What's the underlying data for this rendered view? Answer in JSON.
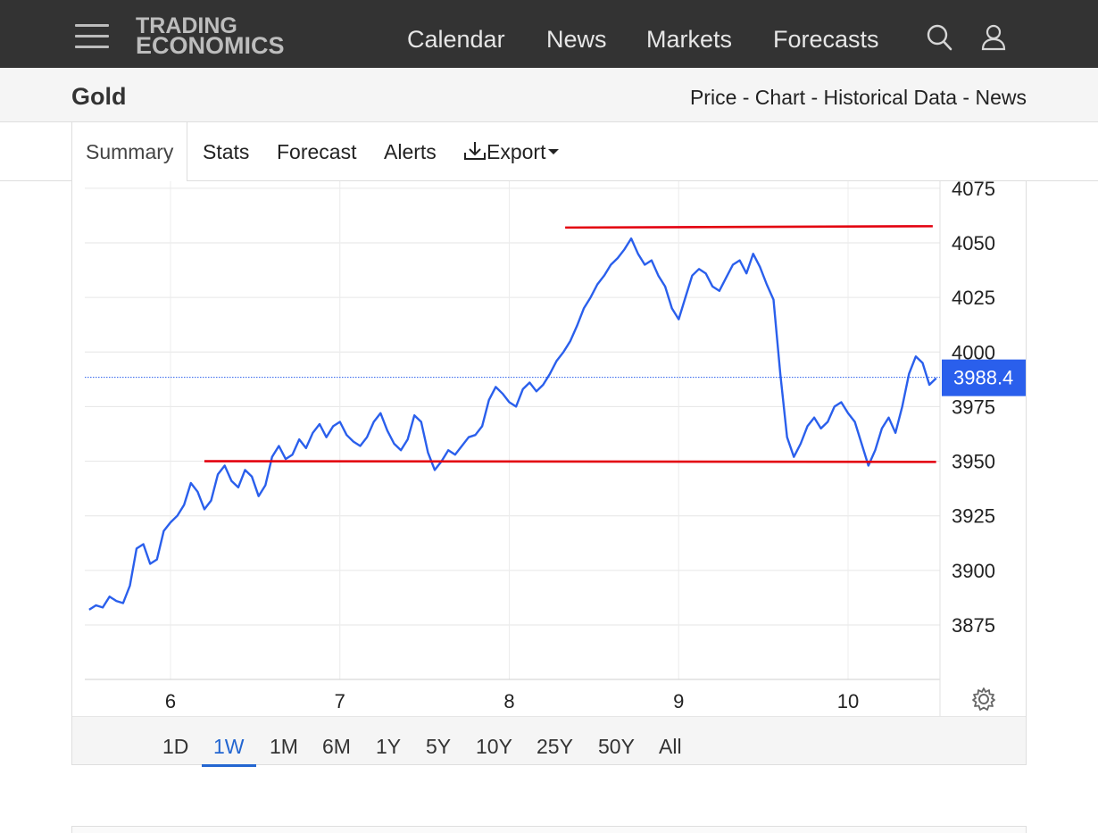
{
  "header": {
    "logo_line1": "TRADING",
    "logo_line2": "ECONOMICS",
    "nav": [
      "Calendar",
      "News",
      "Markets",
      "Forecasts"
    ]
  },
  "page": {
    "title": "Gold",
    "links": "Price - Chart - Historical Data - News"
  },
  "tabs": {
    "summary": "Summary",
    "stats": "Stats",
    "forecast": "Forecast",
    "alerts": "Alerts",
    "export": "Export"
  },
  "colors": {
    "line": "#2a5fec",
    "support": "#e3000f",
    "badge": "#2a5fec"
  },
  "chart_data": {
    "type": "line",
    "series_color": "#2a5fec",
    "current_value": "3988.4",
    "y_ticks": [
      "4075",
      "4050",
      "4025",
      "4000",
      "3975",
      "3950",
      "3925",
      "3900",
      "3875"
    ],
    "x_ticks": [
      "6",
      "7",
      "8",
      "9",
      "10"
    ],
    "ylim": [
      3860,
      4075
    ],
    "xlim": [
      5.5,
      10.55
    ],
    "resistance_level": 4057,
    "resistance_x": [
      8.33,
      10.5
    ],
    "support_level": 3950,
    "support_x": [
      6.2,
      10.52
    ],
    "points": [
      [
        5.52,
        3882
      ],
      [
        5.56,
        3884
      ],
      [
        5.6,
        3883
      ],
      [
        5.64,
        3888
      ],
      [
        5.68,
        3886
      ],
      [
        5.72,
        3885
      ],
      [
        5.76,
        3893
      ],
      [
        5.8,
        3910
      ],
      [
        5.84,
        3912
      ],
      [
        5.88,
        3903
      ],
      [
        5.92,
        3905
      ],
      [
        5.96,
        3918
      ],
      [
        6.0,
        3922
      ],
      [
        6.04,
        3925
      ],
      [
        6.08,
        3930
      ],
      [
        6.12,
        3940
      ],
      [
        6.16,
        3936
      ],
      [
        6.2,
        3928
      ],
      [
        6.24,
        3932
      ],
      [
        6.28,
        3944
      ],
      [
        6.32,
        3948
      ],
      [
        6.36,
        3941
      ],
      [
        6.4,
        3938
      ],
      [
        6.44,
        3946
      ],
      [
        6.48,
        3943
      ],
      [
        6.52,
        3934
      ],
      [
        6.56,
        3939
      ],
      [
        6.6,
        3952
      ],
      [
        6.64,
        3957
      ],
      [
        6.68,
        3951
      ],
      [
        6.72,
        3953
      ],
      [
        6.76,
        3960
      ],
      [
        6.8,
        3956
      ],
      [
        6.84,
        3963
      ],
      [
        6.88,
        3967
      ],
      [
        6.92,
        3961
      ],
      [
        6.96,
        3966
      ],
      [
        7.0,
        3968
      ],
      [
        7.04,
        3962
      ],
      [
        7.08,
        3959
      ],
      [
        7.12,
        3957
      ],
      [
        7.16,
        3961
      ],
      [
        7.2,
        3968
      ],
      [
        7.24,
        3972
      ],
      [
        7.28,
        3964
      ],
      [
        7.32,
        3958
      ],
      [
        7.36,
        3955
      ],
      [
        7.4,
        3960
      ],
      [
        7.44,
        3971
      ],
      [
        7.48,
        3968
      ],
      [
        7.52,
        3954
      ],
      [
        7.56,
        3946
      ],
      [
        7.6,
        3950
      ],
      [
        7.64,
        3955
      ],
      [
        7.68,
        3953
      ],
      [
        7.72,
        3957
      ],
      [
        7.76,
        3961
      ],
      [
        7.8,
        3962
      ],
      [
        7.84,
        3966
      ],
      [
        7.88,
        3978
      ],
      [
        7.92,
        3984
      ],
      [
        7.96,
        3981
      ],
      [
        8.0,
        3977
      ],
      [
        8.04,
        3975
      ],
      [
        8.08,
        3983
      ],
      [
        8.12,
        3986
      ],
      [
        8.16,
        3982
      ],
      [
        8.2,
        3985
      ],
      [
        8.24,
        3990
      ],
      [
        8.28,
        3996
      ],
      [
        8.32,
        4000
      ],
      [
        8.36,
        4005
      ],
      [
        8.4,
        4012
      ],
      [
        8.44,
        4020
      ],
      [
        8.48,
        4025
      ],
      [
        8.52,
        4031
      ],
      [
        8.56,
        4035
      ],
      [
        8.6,
        4040
      ],
      [
        8.64,
        4043
      ],
      [
        8.68,
        4047
      ],
      [
        8.72,
        4052
      ],
      [
        8.76,
        4045
      ],
      [
        8.8,
        4040
      ],
      [
        8.84,
        4042
      ],
      [
        8.88,
        4035
      ],
      [
        8.92,
        4030
      ],
      [
        8.96,
        4020
      ],
      [
        9.0,
        4015
      ],
      [
        9.04,
        4025
      ],
      [
        9.08,
        4035
      ],
      [
        9.12,
        4038
      ],
      [
        9.16,
        4036
      ],
      [
        9.2,
        4030
      ],
      [
        9.24,
        4028
      ],
      [
        9.28,
        4034
      ],
      [
        9.32,
        4040
      ],
      [
        9.36,
        4042
      ],
      [
        9.4,
        4036
      ],
      [
        9.44,
        4045
      ],
      [
        9.48,
        4039
      ],
      [
        9.52,
        4031
      ],
      [
        9.56,
        4024
      ],
      [
        9.6,
        3990
      ],
      [
        9.64,
        3961
      ],
      [
        9.68,
        3952
      ],
      [
        9.72,
        3958
      ],
      [
        9.76,
        3966
      ],
      [
        9.8,
        3970
      ],
      [
        9.84,
        3965
      ],
      [
        9.88,
        3968
      ],
      [
        9.92,
        3975
      ],
      [
        9.96,
        3977
      ],
      [
        10.0,
        3972
      ],
      [
        10.04,
        3968
      ],
      [
        10.08,
        3958
      ],
      [
        10.12,
        3948
      ],
      [
        10.16,
        3955
      ],
      [
        10.2,
        3965
      ],
      [
        10.24,
        3970
      ],
      [
        10.28,
        3963
      ],
      [
        10.32,
        3975
      ],
      [
        10.36,
        3990
      ],
      [
        10.4,
        3998
      ],
      [
        10.44,
        3995
      ],
      [
        10.48,
        3985
      ],
      [
        10.52,
        3988
      ]
    ],
    "points_visual_note": "values traced from the plotted line"
  },
  "settings_icon": "gear-icon",
  "ranges": [
    "1D",
    "1W",
    "1M",
    "6M",
    "1Y",
    "5Y",
    "10Y",
    "25Y",
    "50Y",
    "All"
  ],
  "active_range": "1W"
}
